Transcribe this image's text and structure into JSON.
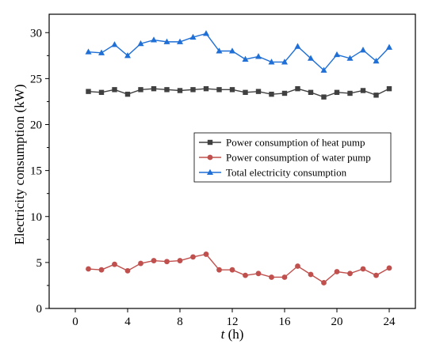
{
  "chart_data": {
    "type": "line",
    "xlabel_italic": "t",
    "xlabel_unit": " (h)",
    "ylabel": "Electricity consumption (kW)",
    "xlim": [
      -2,
      26
    ],
    "ylim": [
      0,
      32
    ],
    "xticks": [
      0,
      4,
      8,
      12,
      16,
      20,
      24
    ],
    "yticks": [
      0,
      5,
      10,
      15,
      20,
      25,
      30
    ],
    "grid": false,
    "legend_position": "center-right",
    "x": [
      1,
      2,
      3,
      4,
      5,
      6,
      7,
      8,
      9,
      10,
      11,
      12,
      13,
      14,
      15,
      16,
      17,
      18,
      19,
      20,
      21,
      22,
      23,
      24
    ],
    "series": [
      {
        "name": "Power consumption of heat pump",
        "color": "#404040",
        "marker": "square",
        "values": [
          23.6,
          23.5,
          23.8,
          23.3,
          23.8,
          23.9,
          23.8,
          23.7,
          23.8,
          23.9,
          23.8,
          23.8,
          23.5,
          23.6,
          23.3,
          23.4,
          23.9,
          23.5,
          23.0,
          23.5,
          23.4,
          23.7,
          23.2,
          23.9
        ]
      },
      {
        "name": "Power consumption of water pump",
        "color": "#c0504d",
        "marker": "circle",
        "values": [
          4.3,
          4.2,
          4.8,
          4.1,
          4.9,
          5.2,
          5.1,
          5.2,
          5.6,
          5.9,
          4.2,
          4.2,
          3.6,
          3.8,
          3.4,
          3.4,
          4.6,
          3.7,
          2.8,
          4.0,
          3.8,
          4.3,
          3.6,
          4.4
        ]
      },
      {
        "name": "Total electricity consumption",
        "color": "#1f6fd6",
        "marker": "triangle",
        "values": [
          27.9,
          27.8,
          28.7,
          27.5,
          28.8,
          29.2,
          29.0,
          29.0,
          29.5,
          29.9,
          28.0,
          28.0,
          27.1,
          27.4,
          26.8,
          26.8,
          28.5,
          27.2,
          25.9,
          27.6,
          27.2,
          28.1,
          26.9,
          28.4
        ]
      }
    ]
  }
}
